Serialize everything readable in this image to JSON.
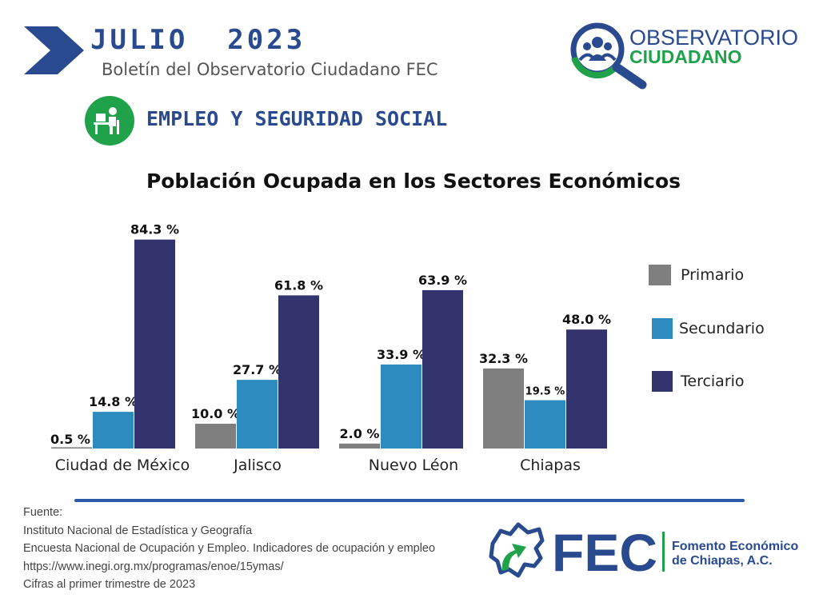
{
  "header": {
    "title": "JULIO  2023",
    "subtitle": "Boletín del Observatorio Ciudadano FEC",
    "logo_line1": "OBSERVATORIO",
    "logo_line2": "CIUDADANO"
  },
  "section": {
    "title": "EMPLEO Y SEGURIDAD SOCIAL",
    "icon": "desk-worker-icon"
  },
  "colors": {
    "primario": "#7f7f7f",
    "secundario": "#2e8bbf",
    "terciario": "#33336d",
    "brand_blue": "#2a4a8f",
    "brand_green": "#1fa24a"
  },
  "chart_data": {
    "type": "bar",
    "title": "Población Ocupada en los Sectores Económicos",
    "categories": [
      "Ciudad de México",
      "Jalisco",
      "Nuevo Léon",
      "Chiapas"
    ],
    "series": [
      {
        "name": "Primario",
        "values": [
          0.5,
          10.0,
          2.0,
          32.3
        ],
        "labels": [
          "0.5 %",
          "10.0 %",
          "2.0 %",
          "32.3 %"
        ]
      },
      {
        "name": "Secundario",
        "values": [
          14.8,
          27.7,
          33.9,
          19.5
        ],
        "labels": [
          "14.8 %",
          "27.7 %",
          "33.9 %",
          "19.5 %"
        ]
      },
      {
        "name": "Terciario",
        "values": [
          84.3,
          61.8,
          63.9,
          48.0
        ],
        "labels": [
          "84.3 %",
          "61.8 %",
          "63.9 %",
          "48.0 %"
        ]
      }
    ],
    "ylim": [
      0,
      100
    ],
    "grid": false,
    "legend_position": "right"
  },
  "legend": [
    "Primario",
    "Secundario",
    "Terciario"
  ],
  "source": {
    "lines": [
      "Fuente:",
      "Instituto Nacional de Estadística y Geografía",
      "Encuesta Nacional de Ocupación y Empleo. Indicadores de ocupación y empleo",
      "https://www.inegi.org.mx/programas/enoe/15ymas/",
      "Cifras al primer trimestre de 2023"
    ]
  },
  "footer_logo": {
    "acronym": "FEC",
    "name_line1": "Fomento Económico",
    "name_line2": "de Chiapas, A.C."
  }
}
